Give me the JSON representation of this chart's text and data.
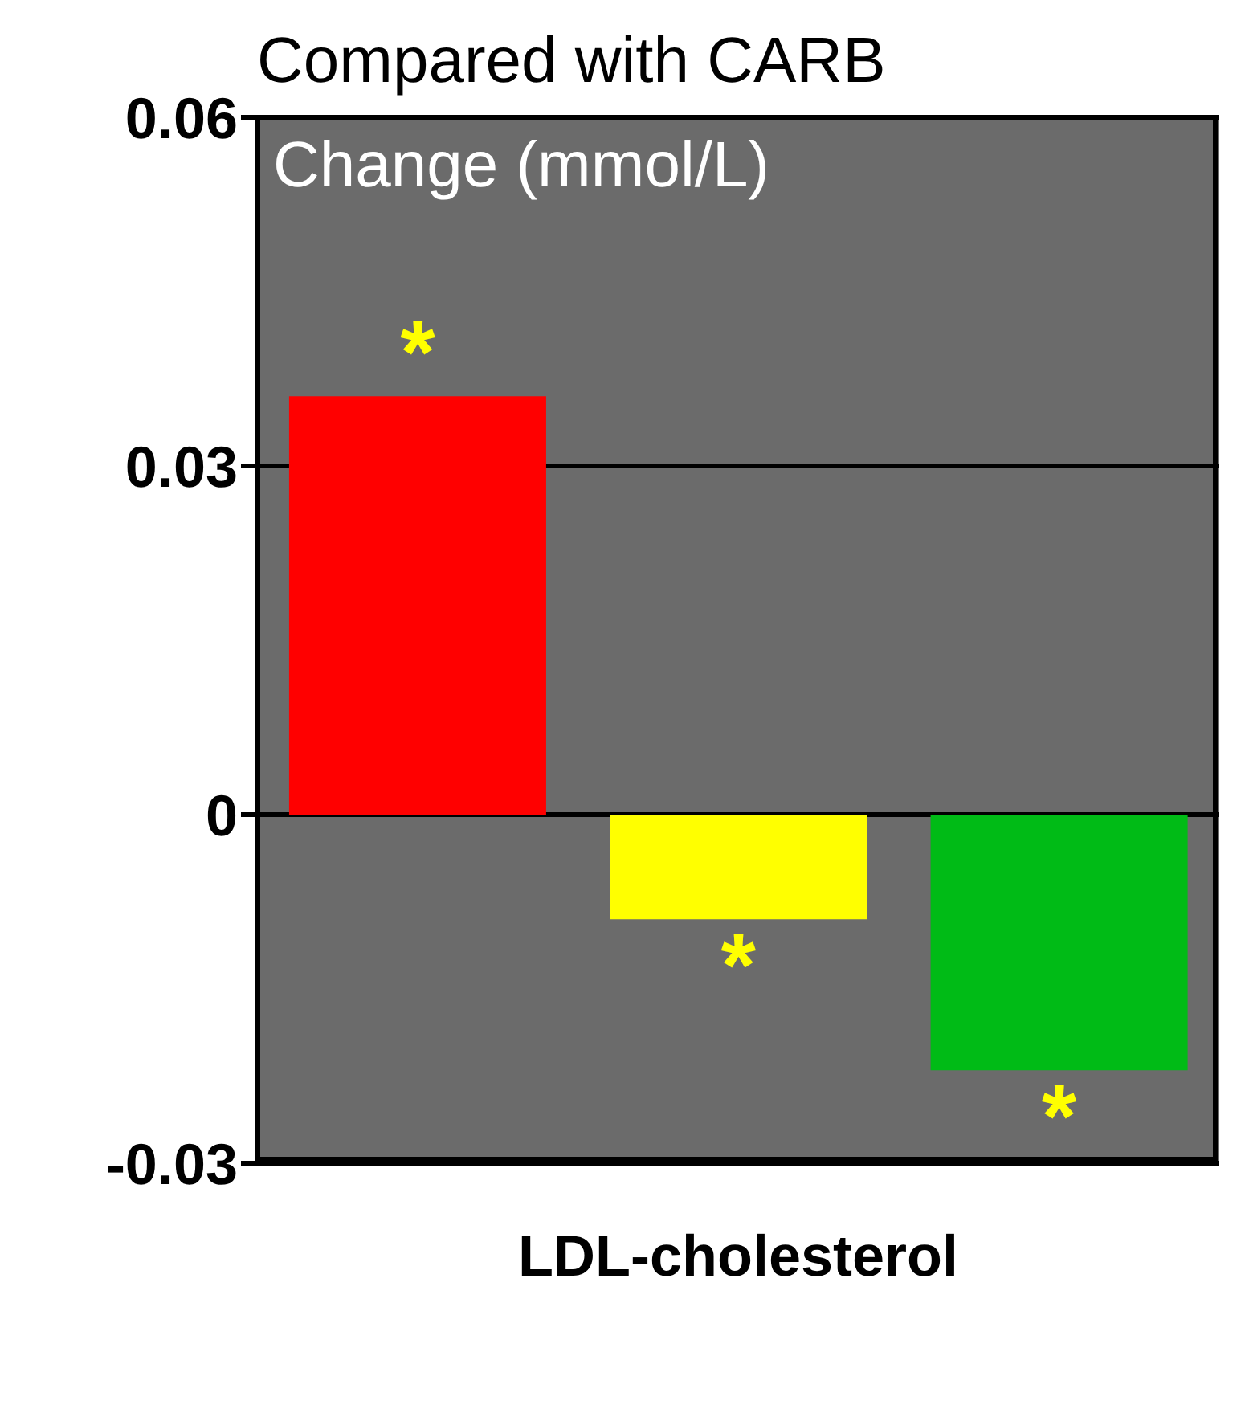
{
  "chart_data": {
    "type": "bar",
    "title": "Compared with CARB",
    "ylabel": "Change (mmol/L)",
    "xlabel": "LDL-cholesterol",
    "categories": [
      null,
      null,
      null
    ],
    "values": [
      0.036,
      -0.009,
      -0.022
    ],
    "colors": [
      "#ff0000",
      "#ffff00",
      "#00bb16"
    ],
    "ylim": [
      -0.03,
      0.06
    ],
    "yticks": [
      -0.03,
      0,
      0.03,
      0.06
    ],
    "grid": "y",
    "annotations": [
      "*",
      "*",
      "*"
    ]
  }
}
